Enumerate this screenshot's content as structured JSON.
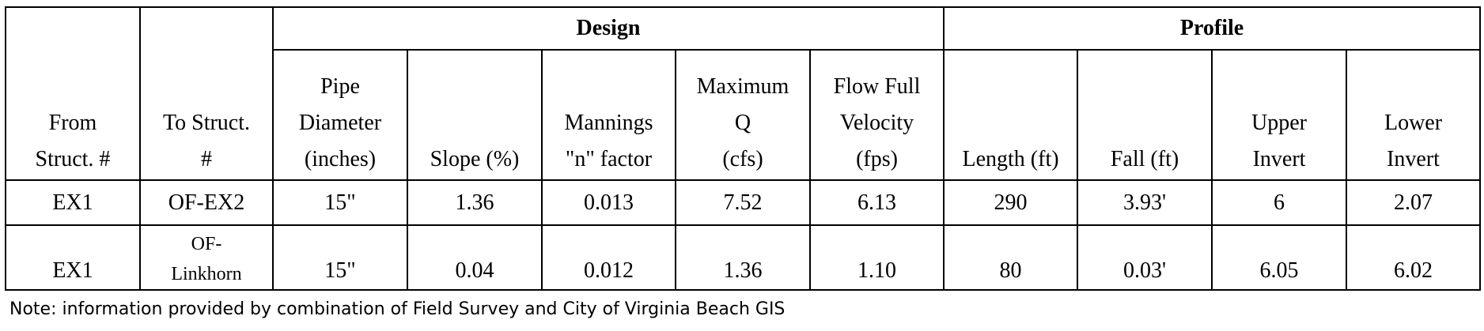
{
  "header": {
    "groups": [
      "Design",
      "Profile"
    ],
    "columns": [
      "From\nStruct. #",
      "To Struct.\n#",
      "Pipe\nDiameter\n(inches)",
      "Slope (%)",
      "Mannings\n\"n\" factor",
      "Maximum\nQ\n(cfs)",
      "Flow Full\nVelocity\n(fps)",
      "Length (ft)",
      "Fall (ft)",
      "Upper\nInvert",
      "Lower\nInvert"
    ]
  },
  "table": {
    "rows": [
      [
        "EX1",
        "OF-EX2",
        "15\"",
        "1.36",
        "0.013",
        "7.52",
        "6.13",
        "290",
        "3.93'",
        "6",
        "2.07"
      ],
      [
        "EX1",
        "OF-\nLinkhorn",
        "15\"",
        "0.04",
        "0.012",
        "1.36",
        "1.10",
        "80",
        "0.03'",
        "6.05",
        "6.02"
      ]
    ]
  },
  "note": "Note:  information provided by combination of Field Survey and City of Virginia Beach GIS"
}
